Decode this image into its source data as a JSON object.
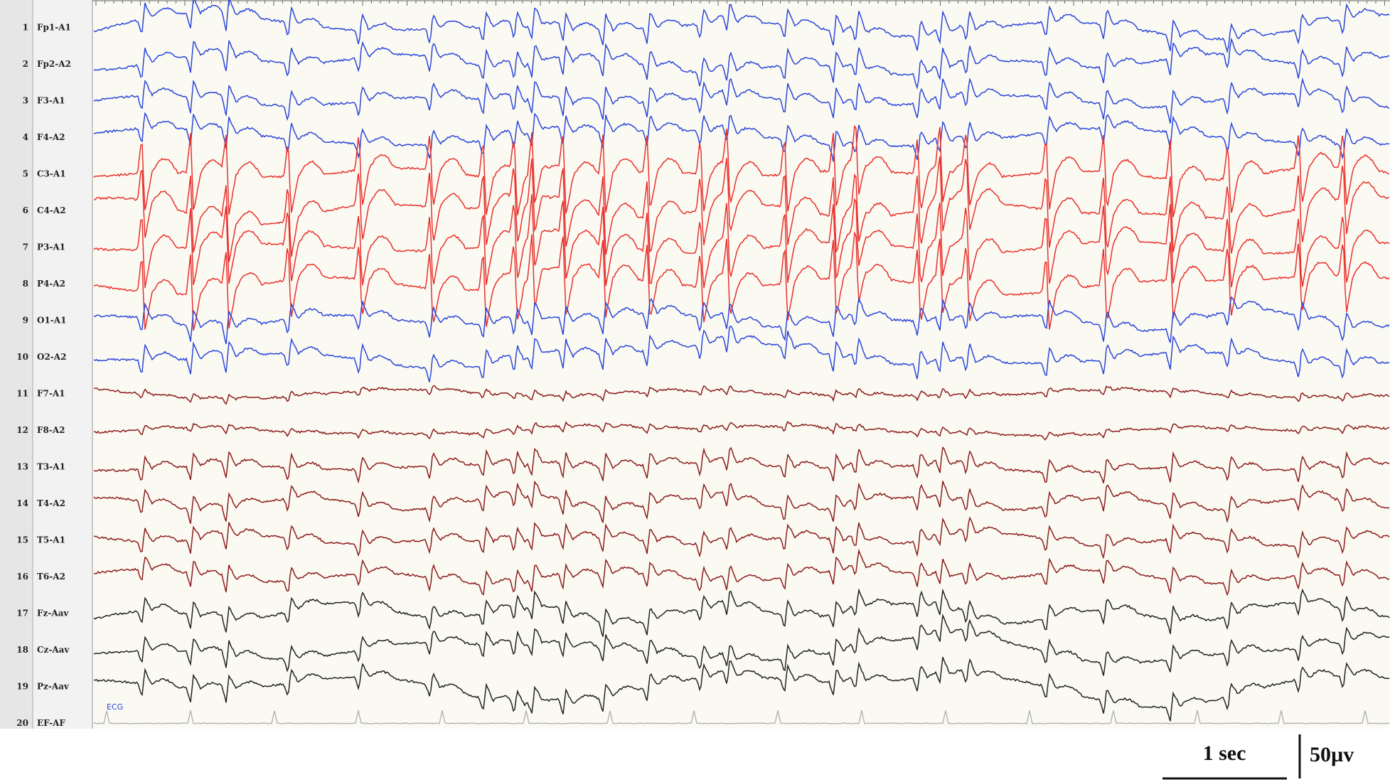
{
  "channels": [
    {
      "number": 1,
      "label": "Fp1-A1",
      "color": "#2b46d9"
    },
    {
      "number": 2,
      "label": "Fp2-A2",
      "color": "#2b46d9"
    },
    {
      "number": 3,
      "label": "F3-A1",
      "color": "#2b46d9"
    },
    {
      "number": 4,
      "label": "F4-A2",
      "color": "#2b46d9"
    },
    {
      "number": 5,
      "label": "C3-A1",
      "color": "#e8302c"
    },
    {
      "number": 6,
      "label": "C4-A2",
      "color": "#e8302c"
    },
    {
      "number": 7,
      "label": "P3-A1",
      "color": "#e8302c"
    },
    {
      "number": 8,
      "label": "P4-A2",
      "color": "#e8302c"
    },
    {
      "number": 9,
      "label": "O1-A1",
      "color": "#2b46d9"
    },
    {
      "number": 10,
      "label": "O2-A2",
      "color": "#2b46d9"
    },
    {
      "number": 11,
      "label": "F7-A1",
      "color": "#8b1c1c"
    },
    {
      "number": 12,
      "label": "F8-A2",
      "color": "#8b1c1c"
    },
    {
      "number": 13,
      "label": "T3-A1",
      "color": "#8b1c1c"
    },
    {
      "number": 14,
      "label": "T4-A2",
      "color": "#8b1c1c"
    },
    {
      "number": 15,
      "label": "T5-A1",
      "color": "#8b1c1c"
    },
    {
      "number": 16,
      "label": "T6-A2",
      "color": "#8b1c1c"
    },
    {
      "number": 17,
      "label": "Fz-Aav",
      "color": "#222222"
    },
    {
      "number": 18,
      "label": "Cz-Aav",
      "color": "#222222"
    },
    {
      "number": 19,
      "label": "Pz-Aav",
      "color": "#222222"
    },
    {
      "number": 20,
      "label": "EF-AF",
      "color": "#b5b5b5"
    }
  ],
  "ecg_marker": "ECG",
  "scale": {
    "time": "1 sec",
    "amplitude": "50µv"
  }
}
